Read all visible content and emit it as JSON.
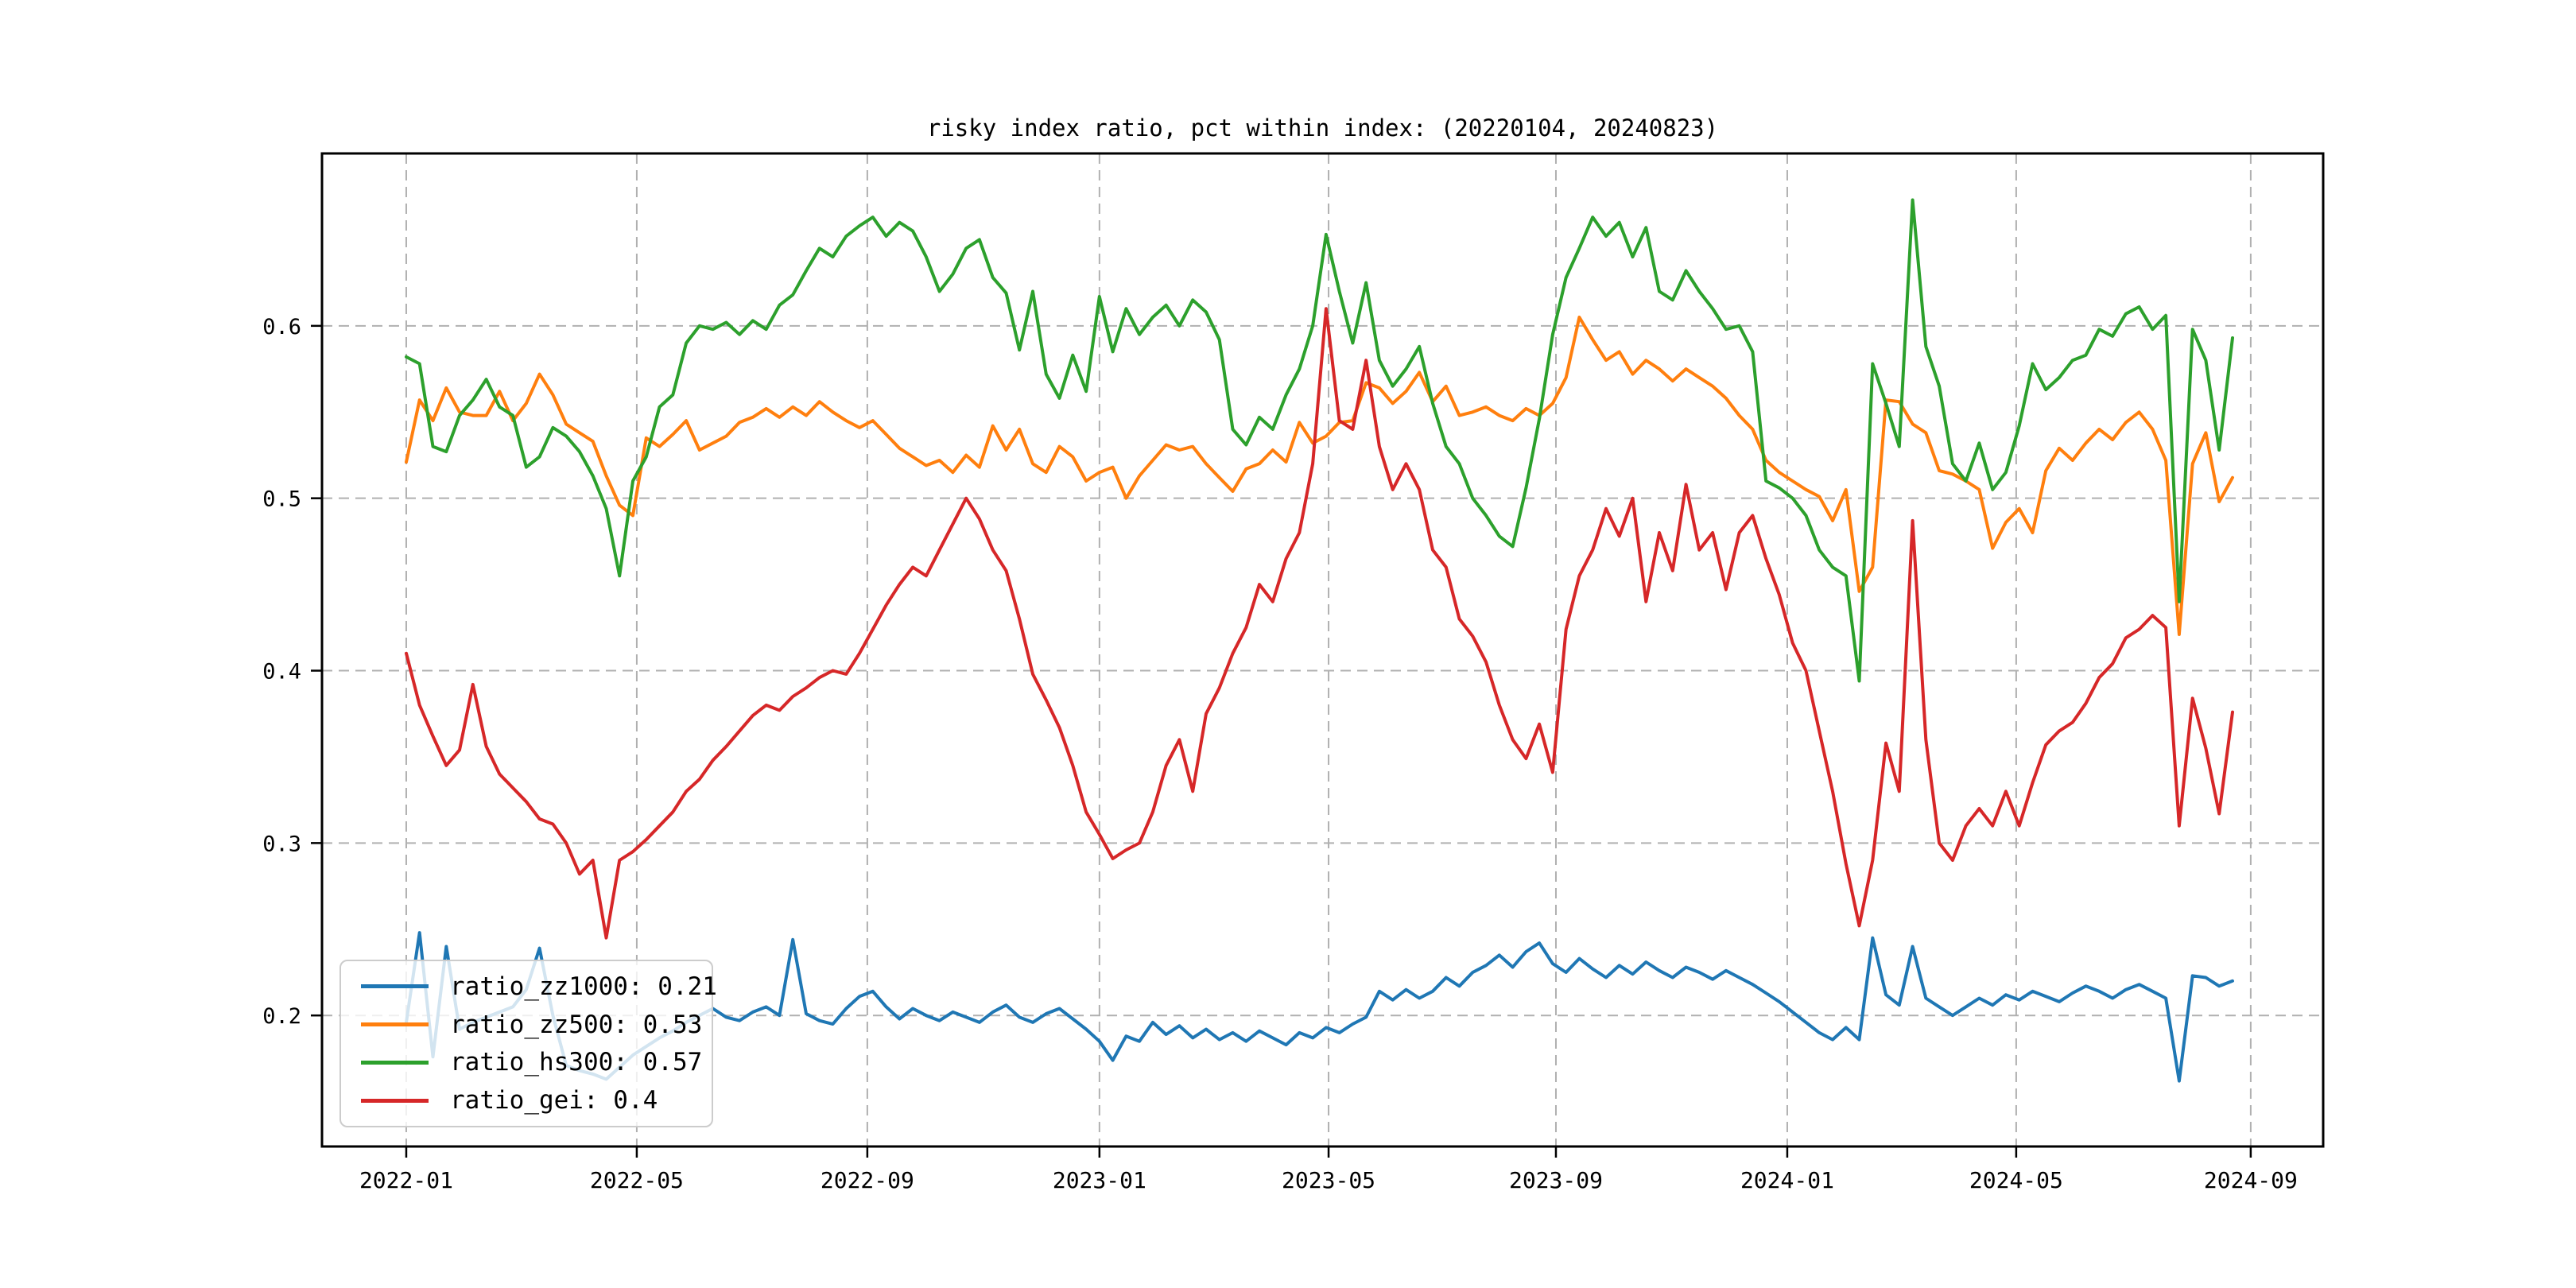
{
  "chart_data": {
    "type": "line",
    "title": "risky index ratio, pct within index: (20220104, 20240823)",
    "xlabel": "",
    "ylabel": "",
    "grid": true,
    "legend_position": "lower-left",
    "ylim": [
      0.124,
      0.7
    ],
    "x_data_range": [
      0.0421,
      0.9547
    ],
    "x_tick_labels": [
      "2022-01",
      "2022-05",
      "2022-09",
      "2023-01",
      "2023-05",
      "2023-09",
      "2024-01",
      "2024-05",
      "2024-09"
    ],
    "x_tick_positions": [
      0.0421,
      0.1573,
      0.2725,
      0.3885,
      0.503,
      0.6166,
      0.7322,
      0.8466,
      0.9638
    ],
    "y_tick_labels": [
      "0.2",
      "0.3",
      "0.4",
      "0.5",
      "0.6"
    ],
    "y_tick_values": [
      0.2,
      0.3,
      0.4,
      0.5,
      0.6
    ],
    "colors": {
      "grid": "#b0b0b0",
      "spine": "#000000",
      "background": "#ffffff",
      "legend_border": "#cccccc"
    },
    "series": [
      {
        "name": "ratio_zz1000",
        "legend_label": "ratio_zz1000: 0.21",
        "color": "#1f77b4",
        "values": [
          0.196,
          0.248,
          0.176,
          0.24,
          0.192,
          0.196,
          0.199,
          0.202,
          0.205,
          0.215,
          0.239,
          0.2,
          0.171,
          0.168,
          0.166,
          0.163,
          0.17,
          0.177,
          0.182,
          0.187,
          0.191,
          0.196,
          0.2,
          0.204,
          0.199,
          0.197,
          0.202,
          0.205,
          0.2,
          0.244,
          0.201,
          0.197,
          0.195,
          0.204,
          0.211,
          0.214,
          0.205,
          0.198,
          0.204,
          0.2,
          0.197,
          0.202,
          0.199,
          0.196,
          0.202,
          0.206,
          0.199,
          0.196,
          0.201,
          0.204,
          0.198,
          0.192,
          0.185,
          0.174,
          0.188,
          0.185,
          0.196,
          0.189,
          0.194,
          0.187,
          0.192,
          0.186,
          0.19,
          0.185,
          0.191,
          0.187,
          0.183,
          0.19,
          0.187,
          0.193,
          0.19,
          0.195,
          0.199,
          0.214,
          0.209,
          0.215,
          0.21,
          0.214,
          0.222,
          0.217,
          0.225,
          0.229,
          0.235,
          0.228,
          0.237,
          0.242,
          0.23,
          0.225,
          0.233,
          0.227,
          0.222,
          0.229,
          0.224,
          0.231,
          0.226,
          0.222,
          0.228,
          0.225,
          0.221,
          0.226,
          0.222,
          0.218,
          0.213,
          0.208,
          0.202,
          0.196,
          0.19,
          0.186,
          0.193,
          0.186,
          0.245,
          0.212,
          0.206,
          0.24,
          0.21,
          0.205,
          0.2,
          0.205,
          0.21,
          0.206,
          0.212,
          0.209,
          0.214,
          0.211,
          0.208,
          0.213,
          0.217,
          0.214,
          0.21,
          0.215,
          0.218,
          0.214,
          0.21,
          0.162,
          0.223,
          0.222,
          0.217,
          0.22
        ]
      },
      {
        "name": "ratio_zz500",
        "legend_label": "ratio_zz500: 0.53",
        "color": "#ff7f0e",
        "values": [
          0.521,
          0.557,
          0.545,
          0.564,
          0.55,
          0.548,
          0.548,
          0.562,
          0.545,
          0.555,
          0.572,
          0.56,
          0.543,
          0.538,
          0.533,
          0.513,
          0.496,
          0.49,
          0.535,
          0.53,
          0.537,
          0.545,
          0.528,
          0.532,
          0.536,
          0.544,
          0.547,
          0.552,
          0.547,
          0.553,
          0.548,
          0.556,
          0.55,
          0.545,
          0.541,
          0.545,
          0.537,
          0.529,
          0.524,
          0.519,
          0.522,
          0.515,
          0.525,
          0.518,
          0.542,
          0.528,
          0.54,
          0.52,
          0.515,
          0.53,
          0.524,
          0.51,
          0.515,
          0.518,
          0.5,
          0.513,
          0.522,
          0.531,
          0.528,
          0.53,
          0.52,
          0.512,
          0.504,
          0.517,
          0.52,
          0.528,
          0.521,
          0.544,
          0.532,
          0.536,
          0.544,
          0.545,
          0.567,
          0.564,
          0.555,
          0.562,
          0.573,
          0.556,
          0.565,
          0.548,
          0.55,
          0.553,
          0.548,
          0.545,
          0.552,
          0.548,
          0.555,
          0.57,
          0.605,
          0.592,
          0.58,
          0.585,
          0.572,
          0.58,
          0.575,
          0.568,
          0.575,
          0.57,
          0.565,
          0.558,
          0.548,
          0.54,
          0.522,
          0.515,
          0.51,
          0.505,
          0.501,
          0.487,
          0.505,
          0.446,
          0.46,
          0.557,
          0.556,
          0.543,
          0.538,
          0.516,
          0.514,
          0.51,
          0.505,
          0.471,
          0.486,
          0.494,
          0.48,
          0.516,
          0.529,
          0.522,
          0.532,
          0.54,
          0.534,
          0.544,
          0.55,
          0.54,
          0.522,
          0.421,
          0.52,
          0.538,
          0.498,
          0.512
        ]
      },
      {
        "name": "ratio_hs300",
        "legend_label": "ratio_hs300: 0.57",
        "color": "#2ca02c",
        "values": [
          0.582,
          0.578,
          0.53,
          0.527,
          0.548,
          0.557,
          0.569,
          0.553,
          0.548,
          0.518,
          0.524,
          0.541,
          0.536,
          0.527,
          0.513,
          0.494,
          0.455,
          0.51,
          0.524,
          0.553,
          0.56,
          0.59,
          0.6,
          0.598,
          0.602,
          0.595,
          0.603,
          0.598,
          0.612,
          0.618,
          0.632,
          0.645,
          0.64,
          0.652,
          0.658,
          0.663,
          0.652,
          0.66,
          0.655,
          0.64,
          0.62,
          0.63,
          0.645,
          0.65,
          0.628,
          0.619,
          0.586,
          0.62,
          0.572,
          0.558,
          0.583,
          0.562,
          0.617,
          0.585,
          0.61,
          0.595,
          0.605,
          0.612,
          0.6,
          0.615,
          0.608,
          0.592,
          0.54,
          0.531,
          0.547,
          0.54,
          0.56,
          0.575,
          0.6,
          0.653,
          0.62,
          0.59,
          0.625,
          0.58,
          0.565,
          0.575,
          0.588,
          0.555,
          0.53,
          0.52,
          0.5,
          0.49,
          0.478,
          0.472,
          0.506,
          0.546,
          0.595,
          0.628,
          0.645,
          0.663,
          0.652,
          0.66,
          0.64,
          0.657,
          0.62,
          0.615,
          0.632,
          0.62,
          0.61,
          0.598,
          0.6,
          0.585,
          0.51,
          0.506,
          0.5,
          0.49,
          0.47,
          0.46,
          0.455,
          0.394,
          0.578,
          0.555,
          0.53,
          0.673,
          0.588,
          0.565,
          0.52,
          0.51,
          0.532,
          0.505,
          0.515,
          0.542,
          0.578,
          0.563,
          0.57,
          0.58,
          0.583,
          0.598,
          0.594,
          0.607,
          0.611,
          0.598,
          0.606,
          0.44,
          0.598,
          0.58,
          0.528,
          0.593
        ]
      },
      {
        "name": "ratio_gei",
        "legend_label": "ratio_gei: 0.4",
        "color": "#d62728",
        "values": [
          0.41,
          0.38,
          0.362,
          0.345,
          0.354,
          0.392,
          0.356,
          0.34,
          0.332,
          0.324,
          0.314,
          0.311,
          0.3,
          0.282,
          0.29,
          0.245,
          0.29,
          0.295,
          0.302,
          0.31,
          0.318,
          0.33,
          0.337,
          0.348,
          0.356,
          0.365,
          0.374,
          0.38,
          0.377,
          0.385,
          0.39,
          0.396,
          0.4,
          0.398,
          0.41,
          0.424,
          0.438,
          0.45,
          0.46,
          0.455,
          0.47,
          0.485,
          0.5,
          0.488,
          0.47,
          0.458,
          0.43,
          0.398,
          0.383,
          0.367,
          0.345,
          0.318,
          0.305,
          0.291,
          0.296,
          0.3,
          0.318,
          0.345,
          0.36,
          0.33,
          0.375,
          0.39,
          0.41,
          0.425,
          0.45,
          0.44,
          0.465,
          0.48,
          0.52,
          0.61,
          0.545,
          0.54,
          0.58,
          0.53,
          0.505,
          0.52,
          0.505,
          0.47,
          0.46,
          0.43,
          0.42,
          0.405,
          0.38,
          0.36,
          0.349,
          0.369,
          0.341,
          0.424,
          0.455,
          0.47,
          0.494,
          0.478,
          0.5,
          0.44,
          0.48,
          0.458,
          0.508,
          0.47,
          0.48,
          0.447,
          0.48,
          0.49,
          0.465,
          0.444,
          0.416,
          0.4,
          0.365,
          0.33,
          0.288,
          0.252,
          0.29,
          0.358,
          0.33,
          0.487,
          0.36,
          0.3,
          0.29,
          0.31,
          0.32,
          0.31,
          0.33,
          0.31,
          0.335,
          0.357,
          0.365,
          0.37,
          0.381,
          0.396,
          0.404,
          0.419,
          0.424,
          0.432,
          0.425,
          0.31,
          0.384,
          0.355,
          0.317,
          0.376
        ]
      }
    ]
  }
}
